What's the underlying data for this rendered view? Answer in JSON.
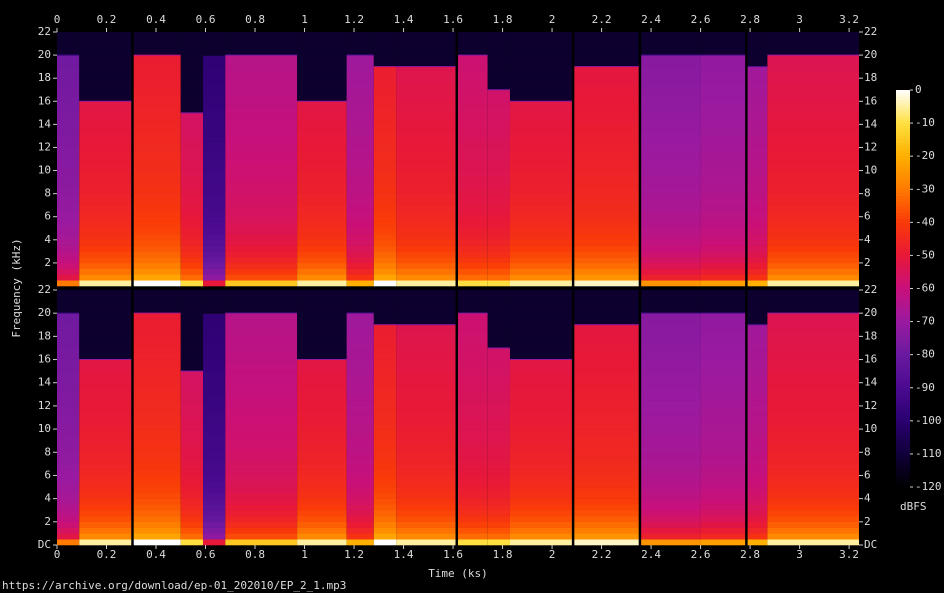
{
  "chart_data": {
    "type": "spectrogram",
    "xlabel": "Time (ks)",
    "ylabel": "Frequency (kHz)",
    "colorbar_label": "dBFS",
    "source": "https://archive.org/download/ep-01_202010/EP_2_1.mp3",
    "xlim": [
      0,
      3.24
    ],
    "xticks": [
      0,
      0.2,
      0.4,
      0.6,
      0.8,
      1,
      1.2,
      1.4,
      1.6,
      1.8,
      2,
      2.2,
      2.4,
      2.6,
      2.8,
      3,
      3.2
    ],
    "panels": [
      {
        "ylim": [
          0,
          22
        ],
        "yticks": [
          2,
          4,
          6,
          8,
          10,
          12,
          14,
          16,
          18,
          20,
          22
        ]
      },
      {
        "ylim": [
          0,
          22
        ],
        "yticks": [
          {
            "value": 0,
            "label": "DC"
          },
          2,
          4,
          6,
          8,
          10,
          12,
          14,
          16,
          18,
          20,
          22
        ]
      }
    ],
    "clim": [
      -120,
      0
    ],
    "cticks": [
      0,
      -10,
      -20,
      -30,
      -40,
      -50,
      -60,
      -70,
      -80,
      -90,
      -100,
      -110,
      -120
    ],
    "segments": [
      {
        "start": 0,
        "end": 0.09,
        "cutoff": 20,
        "level": -75
      },
      {
        "start": 0.09,
        "end": 0.3,
        "cutoff": 16,
        "level": -50
      },
      {
        "start": 0.31,
        "end": 0.5,
        "cutoff": 20,
        "level": -45
      },
      {
        "start": 0.5,
        "end": 0.59,
        "cutoff": 15,
        "level": -55
      },
      {
        "start": 0.59,
        "end": 0.68,
        "cutoff": 20,
        "level": -95
      },
      {
        "start": 0.68,
        "end": 0.97,
        "cutoff": 20,
        "level": -60
      },
      {
        "start": 0.97,
        "end": 1.17,
        "cutoff": 16,
        "level": -50
      },
      {
        "start": 1.17,
        "end": 1.28,
        "cutoff": 20,
        "level": -65
      },
      {
        "start": 1.28,
        "end": 1.37,
        "cutoff": 19,
        "level": -45
      },
      {
        "start": 1.37,
        "end": 1.61,
        "cutoff": 19,
        "level": -50
      },
      {
        "start": 1.62,
        "end": 1.74,
        "cutoff": 20,
        "level": -55
      },
      {
        "start": 1.74,
        "end": 1.83,
        "cutoff": 17,
        "level": -55
      },
      {
        "start": 1.83,
        "end": 2.08,
        "cutoff": 16,
        "level": -50
      },
      {
        "start": 2.09,
        "end": 2.35,
        "cutoff": 19,
        "level": -48
      },
      {
        "start": 2.36,
        "end": 2.6,
        "cutoff": 20,
        "level": -70
      },
      {
        "start": 2.6,
        "end": 2.78,
        "cutoff": 20,
        "level": -68
      },
      {
        "start": 2.79,
        "end": 2.87,
        "cutoff": 19,
        "level": -65
      },
      {
        "start": 2.87,
        "end": 3.24,
        "cutoff": 20,
        "level": -50
      }
    ]
  }
}
